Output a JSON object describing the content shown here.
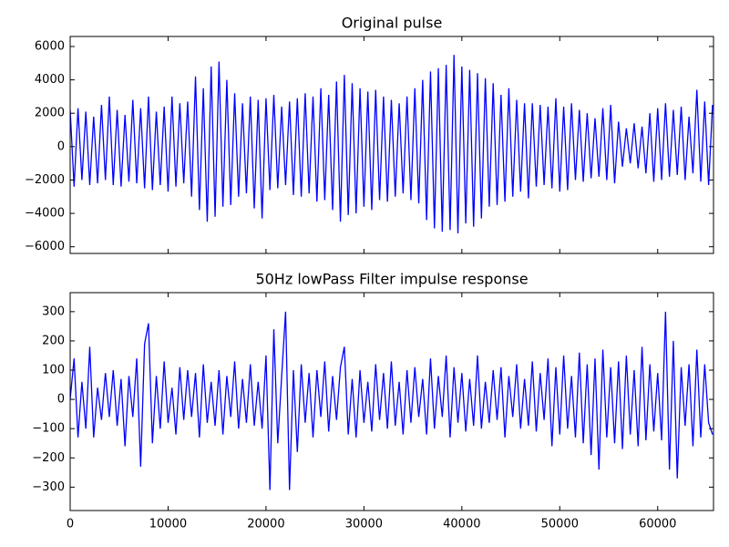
{
  "chart_data": [
    {
      "type": "line",
      "title": "Original pulse",
      "color": "#0000ff",
      "xlim": [
        0,
        65700
      ],
      "xticks": [
        0,
        10000,
        20000,
        30000,
        40000,
        50000,
        60000
      ],
      "show_xticklabels": false,
      "ylim": [
        -6400,
        6600
      ],
      "yticks": [
        {
          "value": -6000,
          "label": "−6000"
        },
        {
          "value": -4000,
          "label": "−4000"
        },
        {
          "value": -2000,
          "label": "−2000"
        },
        0,
        2000,
        4000,
        6000
      ],
      "x": [
        0,
        400,
        800,
        1200,
        1600,
        2000,
        2400,
        2800,
        3200,
        3600,
        4000,
        4400,
        4800,
        5200,
        5600,
        6000,
        6400,
        6800,
        7200,
        7600,
        8000,
        8400,
        8800,
        9200,
        9600,
        10000,
        10400,
        10800,
        11200,
        11600,
        12000,
        12400,
        12800,
        13200,
        13600,
        14000,
        14400,
        14800,
        15200,
        15600,
        16000,
        16400,
        16800,
        17200,
        17600,
        18000,
        18400,
        18800,
        19200,
        19600,
        20000,
        20400,
        20800,
        21200,
        21600,
        22000,
        22400,
        22800,
        23200,
        23600,
        24000,
        24400,
        24800,
        25200,
        25600,
        26000,
        26400,
        26800,
        27200,
        27600,
        28000,
        28400,
        28800,
        29200,
        29600,
        30000,
        30400,
        30800,
        31200,
        31600,
        32000,
        32400,
        32800,
        33200,
        33600,
        34000,
        34400,
        34800,
        35200,
        35600,
        36000,
        36400,
        36800,
        37200,
        37600,
        38000,
        38400,
        38800,
        39200,
        39600,
        40000,
        40400,
        40800,
        41200,
        41600,
        42000,
        42400,
        42800,
        43200,
        43600,
        44000,
        44400,
        44800,
        45200,
        45600,
        46000,
        46400,
        46800,
        47200,
        47600,
        48000,
        48400,
        48800,
        49200,
        49600,
        50000,
        50400,
        50800,
        51200,
        51600,
        52000,
        52400,
        52800,
        53200,
        53600,
        54000,
        54400,
        54800,
        55200,
        55600,
        56000,
        56400,
        56800,
        57200,
        57600,
        58000,
        58400,
        58800,
        59200,
        59600,
        60000,
        60400,
        60800,
        61200,
        61600,
        62000,
        62400,
        62800,
        63200,
        63600,
        64000,
        64400,
        64800,
        65200,
        65600
      ],
      "values": [
        2200,
        -2400,
        2300,
        -2000,
        2100,
        -2300,
        1800,
        -2200,
        2500,
        -2000,
        3000,
        -2300,
        2200,
        -2400,
        1900,
        -2100,
        2800,
        -2200,
        2300,
        -2500,
        3000,
        -2600,
        2100,
        -2300,
        2400,
        -2700,
        3000,
        -2400,
        2600,
        -2200,
        2700,
        -3000,
        4200,
        -3800,
        3500,
        -4500,
        4800,
        -4200,
        5100,
        -3600,
        4000,
        -3500,
        3200,
        -3000,
        2600,
        -2800,
        3000,
        -3700,
        2800,
        -4300,
        2900,
        -2600,
        3100,
        -2500,
        2400,
        -2300,
        2700,
        -2900,
        2900,
        -3000,
        3200,
        -2800,
        3000,
        -3300,
        3500,
        -3200,
        3100,
        -3800,
        3900,
        -4500,
        4300,
        -4100,
        3800,
        -4000,
        3500,
        -3600,
        3300,
        -3800,
        3400,
        -3200,
        3000,
        -3300,
        2800,
        -3000,
        2600,
        -2800,
        3000,
        -3200,
        3500,
        -3400,
        4000,
        -4400,
        4500,
        -4900,
        4700,
        -5100,
        4900,
        -5000,
        5500,
        -5200,
        4800,
        -4600,
        4600,
        -4800,
        4400,
        -4300,
        4100,
        -3600,
        3800,
        -3500,
        3100,
        -3300,
        3500,
        -3000,
        2800,
        -2700,
        2600,
        -3100,
        2600,
        -2400,
        2500,
        -2300,
        2400,
        -2500,
        2900,
        -2700,
        2400,
        -2600,
        2600,
        -2000,
        2200,
        -2100,
        2000,
        -1900,
        1700,
        -1800,
        2300,
        -2000,
        2500,
        -2200,
        1500,
        -1200,
        1100,
        -1000,
        1400,
        -1300,
        1200,
        -1600,
        2000,
        -2100,
        2300,
        -2000,
        2600,
        -1800,
        2200,
        -1700,
        2400,
        -2000,
        1800,
        -1600,
        3400,
        -2100,
        2700,
        -2300,
        2500
      ]
    },
    {
      "type": "line",
      "title": "50Hz lowPass Filter impulse response",
      "color": "#0000ff",
      "xlim": [
        0,
        65700
      ],
      "xticks": [
        0,
        10000,
        20000,
        30000,
        40000,
        50000,
        60000
      ],
      "show_xticklabels": true,
      "ylim": [
        -380,
        365
      ],
      "yticks": [
        {
          "value": -300,
          "label": "−300"
        },
        {
          "value": -200,
          "label": "−200"
        },
        {
          "value": -100,
          "label": "−100"
        },
        0,
        100,
        200,
        300
      ],
      "x": [
        0,
        400,
        800,
        1200,
        1600,
        2000,
        2400,
        2800,
        3200,
        3600,
        4000,
        4400,
        4800,
        5200,
        5600,
        6000,
        6400,
        6800,
        7200,
        7600,
        8000,
        8400,
        8800,
        9200,
        9600,
        10000,
        10400,
        10800,
        11200,
        11600,
        12000,
        12400,
        12800,
        13200,
        13600,
        14000,
        14400,
        14800,
        15200,
        15600,
        16000,
        16400,
        16800,
        17200,
        17600,
        18000,
        18400,
        18800,
        19200,
        19600,
        20000,
        20400,
        20800,
        21200,
        21600,
        22000,
        22400,
        22800,
        23200,
        23600,
        24000,
        24400,
        24800,
        25200,
        25600,
        26000,
        26400,
        26800,
        27200,
        27600,
        28000,
        28400,
        28800,
        29200,
        29600,
        30000,
        30400,
        30800,
        31200,
        31600,
        32000,
        32400,
        32800,
        33200,
        33600,
        34000,
        34400,
        34800,
        35200,
        35600,
        36000,
        36400,
        36800,
        37200,
        37600,
        38000,
        38400,
        38800,
        39200,
        39600,
        40000,
        40400,
        40800,
        41200,
        41600,
        42000,
        42400,
        42800,
        43200,
        43600,
        44000,
        44400,
        44800,
        45200,
        45600,
        46000,
        46400,
        46800,
        47200,
        47600,
        48000,
        48400,
        48800,
        49200,
        49600,
        50000,
        50400,
        50800,
        51200,
        51600,
        52000,
        52400,
        52800,
        53200,
        53600,
        54000,
        54400,
        54800,
        55200,
        55600,
        56000,
        56400,
        56800,
        57200,
        57600,
        58000,
        58400,
        58800,
        59200,
        59600,
        60000,
        60400,
        60800,
        61200,
        61600,
        62000,
        62400,
        62800,
        63200,
        63600,
        64000,
        64400,
        64800,
        65200,
        65600
      ],
      "values": [
        0,
        140,
        -130,
        60,
        -100,
        180,
        -130,
        40,
        -70,
        90,
        -60,
        100,
        -90,
        70,
        -160,
        80,
        -60,
        140,
        -230,
        190,
        260,
        -150,
        80,
        -100,
        130,
        -80,
        40,
        -120,
        110,
        -70,
        100,
        -60,
        90,
        -130,
        120,
        -80,
        60,
        -90,
        100,
        -120,
        80,
        -60,
        130,
        -100,
        70,
        -80,
        120,
        -90,
        60,
        -100,
        150,
        -310,
        240,
        -150,
        80,
        300,
        -310,
        100,
        -180,
        120,
        -80,
        90,
        -130,
        100,
        -60,
        130,
        -110,
        80,
        -70,
        110,
        180,
        -120,
        70,
        -130,
        100,
        -80,
        60,
        -110,
        120,
        -70,
        90,
        -100,
        130,
        -90,
        60,
        -120,
        100,
        -80,
        110,
        -60,
        70,
        -120,
        140,
        -100,
        80,
        -60,
        150,
        -130,
        110,
        -80,
        90,
        -110,
        70,
        -90,
        150,
        -100,
        60,
        -80,
        100,
        -70,
        110,
        -130,
        80,
        -60,
        120,
        -100,
        70,
        -90,
        130,
        -110,
        90,
        -70,
        140,
        -160,
        110,
        -120,
        150,
        -100,
        80,
        -130,
        160,
        -150,
        120,
        -190,
        140,
        -240,
        170,
        -130,
        110,
        -150,
        130,
        -170,
        150,
        -120,
        100,
        -160,
        180,
        -140,
        120,
        -110,
        90,
        -140,
        300,
        -240,
        200,
        -270,
        110,
        -90,
        120,
        -160,
        170,
        -130,
        120,
        -80,
        -120
      ]
    }
  ]
}
